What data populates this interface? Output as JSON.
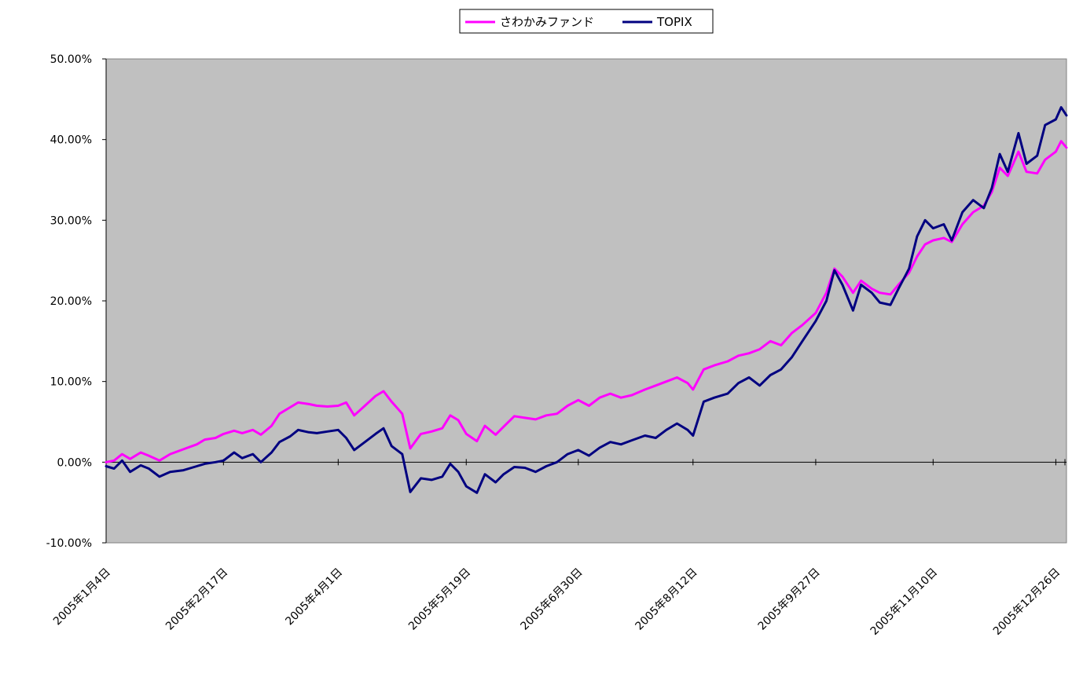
{
  "chart_data": {
    "type": "line",
    "title": "",
    "xlabel": "",
    "ylabel": "",
    "ylim": [
      -0.1,
      0.5
    ],
    "ytick_values": [
      -0.1,
      0.0,
      0.1,
      0.2,
      0.3,
      0.4,
      0.5
    ],
    "ytick_labels": [
      "-10.00%",
      "0.00%",
      "10.00%",
      "20.00%",
      "30.00%",
      "40.00%",
      "50.00%"
    ],
    "xtick_labels": [
      "2005年1月4日",
      "2005年2月17日",
      "2005年4月1日",
      "2005年5月19日",
      "2005年6月30日",
      "2005年8月12日",
      "2005年9月27日",
      "2005年11月10日",
      "2005年12月26日"
    ],
    "xtick_dates": [
      "2005-01-04",
      "2005-02-17",
      "2005-04-01",
      "2005-05-19",
      "2005-06-30",
      "2005-08-12",
      "2005-09-27",
      "2005-11-10",
      "2005-12-26"
    ],
    "xlim": [
      "2005-01-04",
      "2005-12-30"
    ],
    "grid": false,
    "legend_position": "top",
    "plot_background": "#c0c0c0",
    "series": [
      {
        "name": "さわかみファンド",
        "color": "#ff00ff",
        "points": [
          [
            "2005-01-04",
            0.0
          ],
          [
            "2005-01-07",
            0.002
          ],
          [
            "2005-01-10",
            0.01
          ],
          [
            "2005-01-13",
            0.004
          ],
          [
            "2005-01-17",
            0.012
          ],
          [
            "2005-01-20",
            0.008
          ],
          [
            "2005-01-24",
            0.002
          ],
          [
            "2005-01-28",
            0.01
          ],
          [
            "2005-02-02",
            0.016
          ],
          [
            "2005-02-07",
            0.022
          ],
          [
            "2005-02-10",
            0.028
          ],
          [
            "2005-02-14",
            0.03
          ],
          [
            "2005-02-17",
            0.035
          ],
          [
            "2005-02-21",
            0.039
          ],
          [
            "2005-02-24",
            0.036
          ],
          [
            "2005-02-28",
            0.04
          ],
          [
            "2005-03-03",
            0.034
          ],
          [
            "2005-03-07",
            0.045
          ],
          [
            "2005-03-10",
            0.06
          ],
          [
            "2005-03-14",
            0.068
          ],
          [
            "2005-03-17",
            0.074
          ],
          [
            "2005-03-21",
            0.072
          ],
          [
            "2005-03-24",
            0.07
          ],
          [
            "2005-03-28",
            0.069
          ],
          [
            "2005-04-01",
            0.07
          ],
          [
            "2005-04-04",
            0.074
          ],
          [
            "2005-04-07",
            0.058
          ],
          [
            "2005-04-11",
            0.07
          ],
          [
            "2005-04-15",
            0.082
          ],
          [
            "2005-04-18",
            0.088
          ],
          [
            "2005-04-21",
            0.075
          ],
          [
            "2005-04-25",
            0.06
          ],
          [
            "2005-04-28",
            0.017
          ],
          [
            "2005-05-02",
            0.035
          ],
          [
            "2005-05-06",
            0.038
          ],
          [
            "2005-05-10",
            0.042
          ],
          [
            "2005-05-13",
            0.058
          ],
          [
            "2005-05-16",
            0.052
          ],
          [
            "2005-05-19",
            0.035
          ],
          [
            "2005-05-23",
            0.026
          ],
          [
            "2005-05-26",
            0.045
          ],
          [
            "2005-05-30",
            0.034
          ],
          [
            "2005-06-02",
            0.044
          ],
          [
            "2005-06-06",
            0.057
          ],
          [
            "2005-06-10",
            0.055
          ],
          [
            "2005-06-14",
            0.053
          ],
          [
            "2005-06-18",
            0.058
          ],
          [
            "2005-06-22",
            0.06
          ],
          [
            "2005-06-26",
            0.07
          ],
          [
            "2005-06-30",
            0.077
          ],
          [
            "2005-07-04",
            0.07
          ],
          [
            "2005-07-08",
            0.08
          ],
          [
            "2005-07-12",
            0.085
          ],
          [
            "2005-07-16",
            0.08
          ],
          [
            "2005-07-20",
            0.083
          ],
          [
            "2005-07-25",
            0.09
          ],
          [
            "2005-07-29",
            0.095
          ],
          [
            "2005-08-02",
            0.1
          ],
          [
            "2005-08-06",
            0.105
          ],
          [
            "2005-08-10",
            0.098
          ],
          [
            "2005-08-12",
            0.09
          ],
          [
            "2005-08-16",
            0.115
          ],
          [
            "2005-08-20",
            0.12
          ],
          [
            "2005-08-25",
            0.125
          ],
          [
            "2005-08-29",
            0.132
          ],
          [
            "2005-09-02",
            0.135
          ],
          [
            "2005-09-06",
            0.14
          ],
          [
            "2005-09-10",
            0.15
          ],
          [
            "2005-09-14",
            0.145
          ],
          [
            "2005-09-18",
            0.16
          ],
          [
            "2005-09-22",
            0.17
          ],
          [
            "2005-09-27",
            0.185
          ],
          [
            "2005-10-01",
            0.21
          ],
          [
            "2005-10-04",
            0.24
          ],
          [
            "2005-10-07",
            0.23
          ],
          [
            "2005-10-11",
            0.21
          ],
          [
            "2005-10-14",
            0.225
          ],
          [
            "2005-10-18",
            0.215
          ],
          [
            "2005-10-21",
            0.21
          ],
          [
            "2005-10-25",
            0.208
          ],
          [
            "2005-10-28",
            0.22
          ],
          [
            "2005-11-01",
            0.235
          ],
          [
            "2005-11-04",
            0.255
          ],
          [
            "2005-11-07",
            0.27
          ],
          [
            "2005-11-10",
            0.275
          ],
          [
            "2005-11-14",
            0.278
          ],
          [
            "2005-11-17",
            0.273
          ],
          [
            "2005-11-21",
            0.295
          ],
          [
            "2005-11-25",
            0.31
          ],
          [
            "2005-11-29",
            0.318
          ],
          [
            "2005-12-02",
            0.335
          ],
          [
            "2005-12-05",
            0.365
          ],
          [
            "2005-12-08",
            0.355
          ],
          [
            "2005-12-12",
            0.385
          ],
          [
            "2005-12-15",
            0.36
          ],
          [
            "2005-12-19",
            0.358
          ],
          [
            "2005-12-22",
            0.375
          ],
          [
            "2005-12-26",
            0.385
          ],
          [
            "2005-12-28",
            0.398
          ],
          [
            "2005-12-30",
            0.39
          ]
        ]
      },
      {
        "name": "TOPIX",
        "color": "#000080",
        "points": [
          [
            "2005-01-04",
            -0.005
          ],
          [
            "2005-01-07",
            -0.008
          ],
          [
            "2005-01-10",
            0.002
          ],
          [
            "2005-01-13",
            -0.012
          ],
          [
            "2005-01-17",
            -0.004
          ],
          [
            "2005-01-20",
            -0.008
          ],
          [
            "2005-01-24",
            -0.018
          ],
          [
            "2005-01-28",
            -0.012
          ],
          [
            "2005-02-02",
            -0.01
          ],
          [
            "2005-02-07",
            -0.005
          ],
          [
            "2005-02-10",
            -0.002
          ],
          [
            "2005-02-14",
            0.0
          ],
          [
            "2005-02-17",
            0.002
          ],
          [
            "2005-02-21",
            0.012
          ],
          [
            "2005-02-24",
            0.005
          ],
          [
            "2005-02-28",
            0.01
          ],
          [
            "2005-03-03",
            0.0
          ],
          [
            "2005-03-07",
            0.012
          ],
          [
            "2005-03-10",
            0.025
          ],
          [
            "2005-03-14",
            0.032
          ],
          [
            "2005-03-17",
            0.04
          ],
          [
            "2005-03-21",
            0.037
          ],
          [
            "2005-03-24",
            0.036
          ],
          [
            "2005-03-28",
            0.038
          ],
          [
            "2005-04-01",
            0.04
          ],
          [
            "2005-04-04",
            0.03
          ],
          [
            "2005-04-07",
            0.015
          ],
          [
            "2005-04-11",
            0.025
          ],
          [
            "2005-04-15",
            0.035
          ],
          [
            "2005-04-18",
            0.042
          ],
          [
            "2005-04-21",
            0.02
          ],
          [
            "2005-04-25",
            0.01
          ],
          [
            "2005-04-28",
            -0.037
          ],
          [
            "2005-05-02",
            -0.02
          ],
          [
            "2005-05-06",
            -0.022
          ],
          [
            "2005-05-10",
            -0.018
          ],
          [
            "2005-05-13",
            -0.002
          ],
          [
            "2005-05-16",
            -0.012
          ],
          [
            "2005-05-19",
            -0.03
          ],
          [
            "2005-05-23",
            -0.038
          ],
          [
            "2005-05-26",
            -0.015
          ],
          [
            "2005-05-30",
            -0.025
          ],
          [
            "2005-06-02",
            -0.015
          ],
          [
            "2005-06-06",
            -0.006
          ],
          [
            "2005-06-10",
            -0.007
          ],
          [
            "2005-06-14",
            -0.012
          ],
          [
            "2005-06-18",
            -0.005
          ],
          [
            "2005-06-22",
            0.0
          ],
          [
            "2005-06-26",
            0.01
          ],
          [
            "2005-06-30",
            0.015
          ],
          [
            "2005-07-04",
            0.008
          ],
          [
            "2005-07-08",
            0.018
          ],
          [
            "2005-07-12",
            0.025
          ],
          [
            "2005-07-16",
            0.022
          ],
          [
            "2005-07-20",
            0.027
          ],
          [
            "2005-07-25",
            0.033
          ],
          [
            "2005-07-29",
            0.03
          ],
          [
            "2005-08-02",
            0.04
          ],
          [
            "2005-08-06",
            0.048
          ],
          [
            "2005-08-10",
            0.04
          ],
          [
            "2005-08-12",
            0.033
          ],
          [
            "2005-08-16",
            0.075
          ],
          [
            "2005-08-20",
            0.08
          ],
          [
            "2005-08-25",
            0.085
          ],
          [
            "2005-08-29",
            0.098
          ],
          [
            "2005-09-02",
            0.105
          ],
          [
            "2005-09-06",
            0.095
          ],
          [
            "2005-09-10",
            0.108
          ],
          [
            "2005-09-14",
            0.115
          ],
          [
            "2005-09-18",
            0.13
          ],
          [
            "2005-09-22",
            0.15
          ],
          [
            "2005-09-27",
            0.175
          ],
          [
            "2005-10-01",
            0.2
          ],
          [
            "2005-10-04",
            0.238
          ],
          [
            "2005-10-07",
            0.22
          ],
          [
            "2005-10-11",
            0.188
          ],
          [
            "2005-10-14",
            0.22
          ],
          [
            "2005-10-18",
            0.21
          ],
          [
            "2005-10-21",
            0.198
          ],
          [
            "2005-10-25",
            0.195
          ],
          [
            "2005-10-28",
            0.215
          ],
          [
            "2005-11-01",
            0.24
          ],
          [
            "2005-11-04",
            0.28
          ],
          [
            "2005-11-07",
            0.3
          ],
          [
            "2005-11-10",
            0.29
          ],
          [
            "2005-11-14",
            0.295
          ],
          [
            "2005-11-17",
            0.275
          ],
          [
            "2005-11-21",
            0.31
          ],
          [
            "2005-11-25",
            0.325
          ],
          [
            "2005-11-29",
            0.315
          ],
          [
            "2005-12-02",
            0.34
          ],
          [
            "2005-12-05",
            0.382
          ],
          [
            "2005-12-08",
            0.36
          ],
          [
            "2005-12-12",
            0.408
          ],
          [
            "2005-12-15",
            0.37
          ],
          [
            "2005-12-19",
            0.38
          ],
          [
            "2005-12-22",
            0.418
          ],
          [
            "2005-12-26",
            0.425
          ],
          [
            "2005-12-28",
            0.44
          ],
          [
            "2005-12-30",
            0.43
          ]
        ]
      }
    ]
  }
}
